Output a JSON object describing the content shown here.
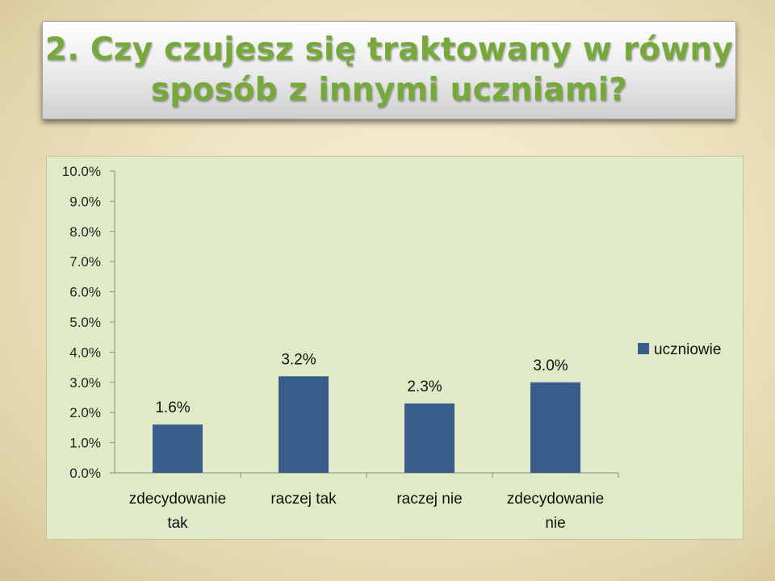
{
  "slide": {
    "title_line1": "2. Czy czujesz się traktowany w równy",
    "title_line2": "sposób z innymi uczniami?"
  },
  "chart_data": {
    "type": "bar",
    "categories": [
      [
        "zdecydowanie",
        "tak"
      ],
      [
        "raczej tak"
      ],
      [
        "raczej nie"
      ],
      [
        "zdecydowanie",
        "nie"
      ]
    ],
    "series": [
      {
        "name": "uczniowie",
        "values": [
          1.6,
          3.2,
          2.3,
          3.0
        ],
        "labels": [
          "1.6%",
          "3.2%",
          "2.3%",
          "3.0%"
        ],
        "color": "#385d8a"
      }
    ],
    "yticks": [
      "0.0%",
      "1.0%",
      "2.0%",
      "3.0%",
      "4.0%",
      "5.0%",
      "6.0%",
      "7.0%",
      "8.0%",
      "9.0%",
      "10.0%"
    ],
    "ylim": [
      0,
      10
    ],
    "grid": false,
    "legend_position": "right"
  }
}
